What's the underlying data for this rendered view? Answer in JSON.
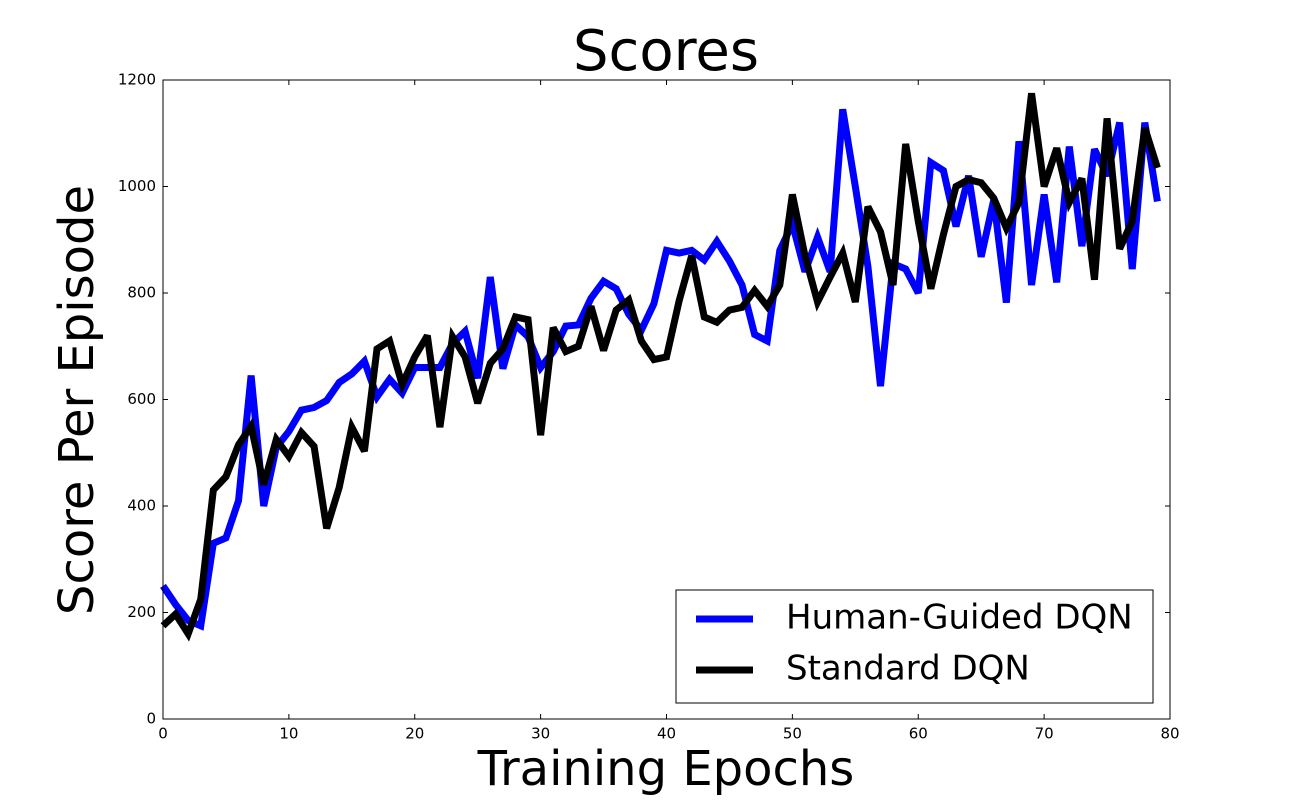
{
  "chart_data": {
    "type": "line",
    "title": "Scores",
    "x_label": "Training Epochs",
    "y_label": "Score Per Episode",
    "x": [
      0,
      1,
      2,
      3,
      4,
      5,
      6,
      7,
      8,
      9,
      10,
      11,
      12,
      13,
      14,
      15,
      16,
      17,
      18,
      19,
      20,
      21,
      22,
      23,
      24,
      25,
      26,
      27,
      28,
      29,
      30,
      31,
      32,
      33,
      34,
      35,
      36,
      37,
      38,
      39,
      40,
      41,
      42,
      43,
      44,
      45,
      46,
      47,
      48,
      49,
      50,
      51,
      52,
      53,
      54,
      55,
      56,
      57,
      58,
      59,
      60,
      61,
      62,
      63,
      64,
      65,
      66,
      67,
      68,
      69,
      70,
      71,
      72,
      73,
      74,
      75,
      76,
      77,
      78,
      79
    ],
    "series": [
      {
        "name": "Human-Guided DQN",
        "color": "#0000ff",
        "values": [
          250,
          215,
          185,
          175,
          330,
          340,
          410,
          645,
          400,
          510,
          540,
          580,
          585,
          598,
          632,
          648,
          672,
          605,
          638,
          612,
          660,
          660,
          660,
          705,
          728,
          640,
          830,
          658,
          740,
          718,
          660,
          690,
          738,
          740,
          790,
          822,
          808,
          760,
          730,
          780,
          880,
          875,
          880,
          862,
          897,
          860,
          815,
          722,
          710,
          880,
          930,
          840,
          905,
          840,
          1145,
          1000,
          850,
          625,
          855,
          845,
          800,
          1045,
          1030,
          925,
          1020,
          868,
          975,
          782,
          1085,
          815,
          985,
          820,
          1075,
          888,
          1070,
          1020,
          1120,
          845,
          1120,
          972
        ]
      },
      {
        "name": "Standard DQN",
        "color": "#000000",
        "values": [
          175,
          197,
          160,
          225,
          430,
          455,
          515,
          550,
          440,
          525,
          493,
          538,
          512,
          358,
          435,
          548,
          503,
          695,
          710,
          628,
          680,
          720,
          548,
          718,
          680,
          593,
          668,
          695,
          755,
          750,
          533,
          735,
          690,
          700,
          775,
          692,
          768,
          787,
          710,
          675,
          680,
          785,
          870,
          755,
          745,
          768,
          773,
          805,
          775,
          815,
          985,
          870,
          783,
          830,
          875,
          783,
          962,
          915,
          815,
          1080,
          935,
          808,
          910,
          1000,
          1013,
          1007,
          978,
          922,
          970,
          1175,
          1000,
          1072,
          970,
          1015,
          825,
          1128,
          883,
          935,
          1110,
          1035
        ]
      }
    ],
    "xlim": [
      0,
      80
    ],
    "ylim": [
      0,
      1200
    ],
    "xticks": [
      0,
      10,
      20,
      30,
      40,
      50,
      60,
      70,
      80
    ],
    "yticks": [
      0,
      200,
      400,
      600,
      800,
      1000,
      1200
    ],
    "legend_position": "lower right"
  }
}
